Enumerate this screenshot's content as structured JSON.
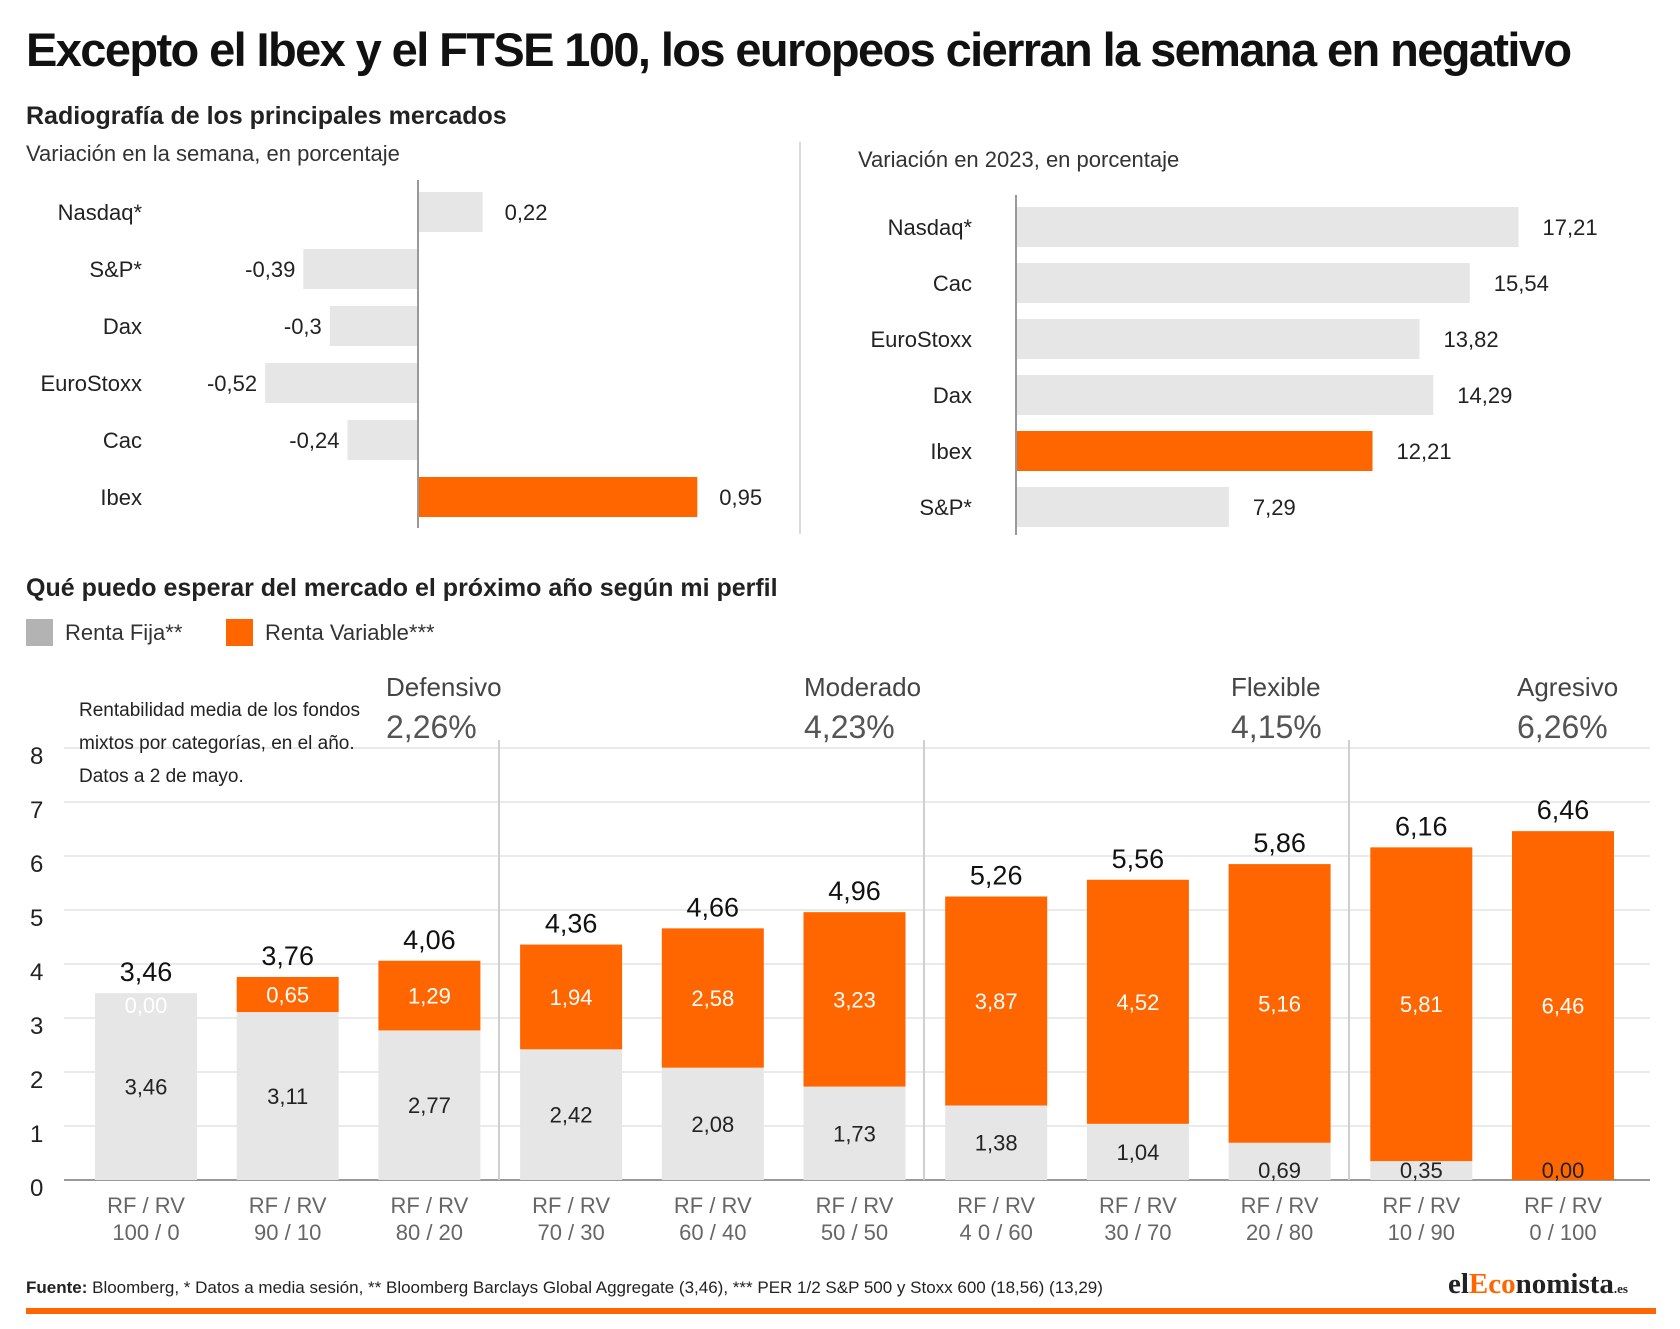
{
  "title": "Excepto el Ibex y el FTSE 100, los europeos cierran la semana en negativo",
  "subtitle": "Radiografía de los principales mercados",
  "colors": {
    "accent": "#ff6600",
    "bar_gray": "#e6e6e6",
    "legend_gray": "#b3b3b3"
  },
  "chart_data": [
    {
      "type": "bar",
      "orientation": "horizontal",
      "title": "Variación en la semana, en porcentaje",
      "categories": [
        "Nasdaq*",
        "S&P*",
        "Dax",
        "EuroStoxx",
        "Cac",
        "Ibex"
      ],
      "values": [
        0.22,
        -0.39,
        -0.3,
        -0.52,
        -0.24,
        0.95
      ],
      "value_labels": [
        "0,22",
        "-0,39",
        "-0,3",
        "-0,52",
        "-0,24",
        "0,95"
      ],
      "highlight": "Ibex"
    },
    {
      "type": "bar",
      "orientation": "horizontal",
      "title": "Variación en 2023, en porcentaje",
      "categories": [
        "Nasdaq*",
        "Cac",
        "EuroStoxx",
        "Dax",
        "Ibex",
        "S&P*"
      ],
      "values": [
        17.21,
        15.54,
        13.82,
        14.29,
        12.21,
        7.29
      ],
      "value_labels": [
        "17,21",
        "15,54",
        "13,82",
        "14,29",
        "12,21",
        "7,29"
      ],
      "highlight": "Ibex"
    },
    {
      "type": "bar",
      "stacked": true,
      "title": "Qué puedo esperar del mercado el próximo año según mi perfil",
      "categories": [
        "RF / RV|100 / 0",
        "RF / RV|90 / 10",
        "RF / RV|80 / 20",
        "RF / RV|70 / 30",
        "RF / RV|60 / 40",
        "RF / RV|50 / 50",
        "RF / RV|4 0 / 60",
        "RF / RV|30 / 70",
        "RF / RV|20 / 80",
        "RF / RV|10 / 90",
        "RF / RV|0 / 100"
      ],
      "series": [
        {
          "name": "Renta Fija**",
          "values": [
            3.46,
            3.11,
            2.77,
            2.42,
            2.08,
            1.73,
            1.38,
            1.04,
            0.69,
            0.35,
            0.0
          ],
          "labels": [
            "3,46",
            "3,11",
            "2,77",
            "2,42",
            "2,08",
            "1,73",
            "1,38",
            "1,04",
            "0,69",
            "0,35",
            "0,00"
          ]
        },
        {
          "name": "Renta Variable***",
          "values": [
            0.0,
            0.65,
            1.29,
            1.94,
            2.58,
            3.23,
            3.87,
            4.52,
            5.16,
            5.81,
            6.46
          ],
          "labels": [
            "0,00",
            "0,65",
            "1,29",
            "1,94",
            "2,58",
            "3,23",
            "3,87",
            "4,52",
            "5,16",
            "5,81",
            "6,46"
          ]
        }
      ],
      "totals": [
        "3,46",
        "3,76",
        "4,06",
        "4,36",
        "4,66",
        "4,96",
        "5,26",
        "5,56",
        "5,86",
        "6,16",
        "6,46"
      ],
      "ylim": [
        0,
        8
      ],
      "yticks": [
        "0",
        "1",
        "2",
        "3",
        "4",
        "5",
        "6",
        "7",
        "8"
      ],
      "grid": true,
      "profiles": [
        {
          "name": "Defensivo",
          "value": "2,26%"
        },
        {
          "name": "Moderado",
          "value": "4,23%"
        },
        {
          "name": "Flexible",
          "value": "4,15%"
        },
        {
          "name": "Agresivo",
          "value": "6,26%"
        }
      ],
      "note": "Rentabilidad media de los fondos mixtos por categorías, en el año. Datos a 2 de mayo."
    }
  ],
  "footer": {
    "label": "Fuente:",
    "text": " Bloomberg, * Datos a media sesión, ** Bloomberg Barclays Global Aggregate (3,46), *** PER 1/2 S&P 500 y Stoxx 600 (18,56) (13,29)"
  },
  "brand": {
    "part1": "el",
    "part2": "Eco",
    "part3": "nomista",
    "tld": ".es"
  }
}
